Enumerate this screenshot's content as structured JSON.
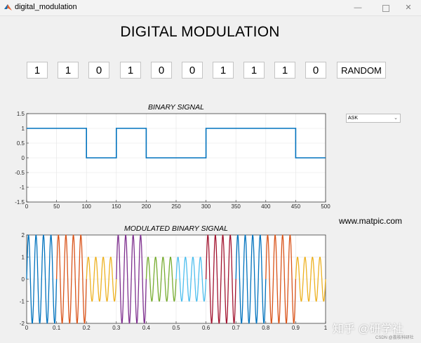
{
  "window": {
    "title": "digital_modulation"
  },
  "header": {
    "title": "DIGITAL MODULATION"
  },
  "bits": [
    "1",
    "1",
    "0",
    "1",
    "0",
    "0",
    "1",
    "1",
    "1",
    "0"
  ],
  "random_label": "RANDOM",
  "modulation_select": {
    "value": "ASK"
  },
  "website": "www.matpic.com",
  "watermark": "知乎 @研学社",
  "csdn": "CSDN @荔枝科研社",
  "colors": [
    "#0072bd",
    "#d95319",
    "#edb120",
    "#7e2f8e",
    "#77ac30",
    "#4dbeee",
    "#a2142f"
  ],
  "chart_data": [
    {
      "type": "line",
      "title": "BINARY SIGNAL",
      "xlim": [
        0,
        500
      ],
      "ylim": [
        -1.5,
        1.5
      ],
      "xticks": [
        "0",
        "50",
        "100",
        "150",
        "200",
        "250",
        "300",
        "350",
        "400",
        "450",
        "500"
      ],
      "yticks": [
        "1.5",
        "1",
        "0.5",
        "0",
        "-0.5",
        "-1",
        "-1.5"
      ],
      "grid": true,
      "series": [
        {
          "x": [
            0,
            100,
            100,
            150,
            150,
            200,
            200,
            300,
            300,
            450,
            450,
            500
          ],
          "y": [
            1,
            1,
            0,
            0,
            1,
            1,
            0,
            0,
            1,
            1,
            0,
            0
          ],
          "color": "#0072bd"
        }
      ]
    },
    {
      "type": "line",
      "title": "MODULATED BINARY SIGNAL",
      "xlim": [
        0,
        1
      ],
      "ylim": [
        -2,
        2
      ],
      "xticks": [
        "0",
        "0.1",
        "0.2",
        "0.3",
        "0.4",
        "0.5",
        "0.6",
        "0.7",
        "0.8",
        "0.9",
        "1"
      ],
      "yticks": [
        "2",
        "1",
        "0",
        "-1",
        "-2"
      ],
      "grid": true,
      "segments": [
        {
          "bit": 1,
          "x": [
            0,
            0.1
          ],
          "amplitude": 2,
          "cycles": 4,
          "color": "#0072bd"
        },
        {
          "bit": 1,
          "x": [
            0.1,
            0.2
          ],
          "amplitude": 2,
          "cycles": 4,
          "color": "#d95319"
        },
        {
          "bit": 0,
          "x": [
            0.2,
            0.3
          ],
          "amplitude": 1,
          "cycles": 4,
          "color": "#edb120"
        },
        {
          "bit": 1,
          "x": [
            0.3,
            0.4
          ],
          "amplitude": 2,
          "cycles": 4,
          "color": "#7e2f8e"
        },
        {
          "bit": 0,
          "x": [
            0.4,
            0.5
          ],
          "amplitude": 1,
          "cycles": 4,
          "color": "#77ac30"
        },
        {
          "bit": 0,
          "x": [
            0.5,
            0.6
          ],
          "amplitude": 1,
          "cycles": 4,
          "color": "#4dbeee"
        },
        {
          "bit": 1,
          "x": [
            0.6,
            0.7
          ],
          "amplitude": 2,
          "cycles": 4,
          "color": "#a2142f"
        },
        {
          "bit": 1,
          "x": [
            0.7,
            0.8
          ],
          "amplitude": 2,
          "cycles": 4,
          "color": "#0072bd"
        },
        {
          "bit": 1,
          "x": [
            0.8,
            0.9
          ],
          "amplitude": 2,
          "cycles": 4,
          "color": "#d95319"
        },
        {
          "bit": 0,
          "x": [
            0.9,
            1.0
          ],
          "amplitude": 1,
          "cycles": 4,
          "color": "#edb120"
        }
      ]
    }
  ]
}
